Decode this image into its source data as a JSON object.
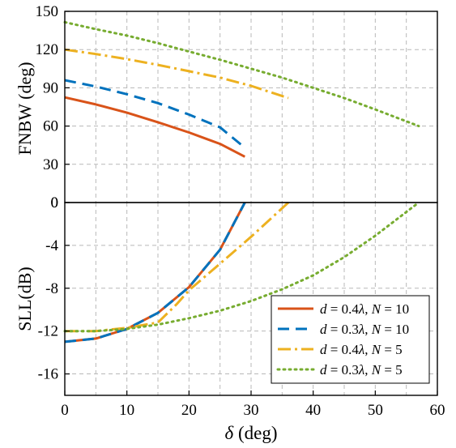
{
  "chart_data": [
    {
      "type": "line",
      "panel": "top",
      "ylabel": "FNBW (deg)",
      "xlim": [
        0,
        60
      ],
      "ylim": [
        0,
        150
      ],
      "yticks": [
        0,
        30,
        60,
        90,
        120,
        150
      ],
      "grid": true,
      "series": [
        {
          "color": "#d95319",
          "dash": "solid",
          "x": [
            0,
            5,
            10,
            15,
            20,
            25,
            29
          ],
          "y": [
            82.5,
            77,
            70.5,
            63,
            55,
            46,
            36
          ]
        },
        {
          "color": "#0072bd",
          "dash": "dash",
          "x": [
            0,
            5,
            10,
            15,
            20,
            25,
            29
          ],
          "y": [
            96,
            91,
            85,
            78,
            69,
            59,
            43
          ]
        },
        {
          "color": "#edb120",
          "dash": "dashdot",
          "x": [
            0,
            5,
            10,
            15,
            20,
            25,
            30,
            36
          ],
          "y": [
            120,
            116.5,
            112.5,
            108,
            103,
            98,
            91.5,
            82
          ]
        },
        {
          "color": "#77ac30",
          "dash": "dot",
          "x": [
            0,
            5,
            10,
            15,
            20,
            25,
            30,
            35,
            40,
            45,
            50,
            57
          ],
          "y": [
            141.5,
            136,
            131,
            125,
            118.5,
            112,
            105,
            98,
            90,
            82,
            73,
            60
          ]
        }
      ]
    },
    {
      "type": "line",
      "panel": "bottom",
      "ylabel": "SLL(dB)",
      "xlabel": "δ (deg)",
      "xlim": [
        0,
        60
      ],
      "xticks": [
        0,
        10,
        20,
        30,
        40,
        50,
        60
      ],
      "ylim": [
        -18,
        0
      ],
      "yticks": [
        0,
        -4,
        -8,
        -12,
        -16
      ],
      "grid": true,
      "legend_position": "lower-right",
      "series": [
        {
          "name": "d = 0.4λ, N = 10",
          "color": "#d95319",
          "dash": "solid",
          "x": [
            0,
            5,
            10,
            15,
            20,
            25,
            29
          ],
          "y": [
            -13,
            -12.7,
            -11.8,
            -10.3,
            -7.9,
            -4.4,
            0
          ]
        },
        {
          "name": "d = 0.3λ, N = 10",
          "color": "#0072bd",
          "dash": "dash",
          "x": [
            0,
            5,
            10,
            15,
            20,
            25,
            29
          ],
          "y": [
            -13,
            -12.7,
            -11.8,
            -10.3,
            -7.9,
            -4.4,
            0
          ]
        },
        {
          "name": "d = 0.4λ, N = 5",
          "color": "#edb120",
          "dash": "dashdot",
          "x": [
            0,
            5,
            10,
            15,
            18,
            20,
            25,
            30,
            36
          ],
          "y": [
            -12,
            -12,
            -11.7,
            -11.2,
            -9.5,
            -8.2,
            -5.7,
            -3.2,
            0
          ]
        },
        {
          "name": "d = 0.3λ, N = 5",
          "color": "#77ac30",
          "dash": "dot",
          "x": [
            0,
            5,
            10,
            15,
            20,
            25,
            30,
            35,
            40,
            45,
            50,
            57
          ],
          "y": [
            -12,
            -12,
            -11.8,
            -11.4,
            -10.8,
            -10.1,
            -9.2,
            -8.1,
            -6.8,
            -5.1,
            -3.1,
            0
          ]
        }
      ]
    }
  ],
  "legend": {
    "entries": [
      {
        "d": "0.4",
        "n": "10"
      },
      {
        "d": "0.3",
        "n": "10"
      },
      {
        "d": "0.4",
        "n": "5"
      },
      {
        "d": "0.3",
        "n": "5"
      }
    ]
  }
}
